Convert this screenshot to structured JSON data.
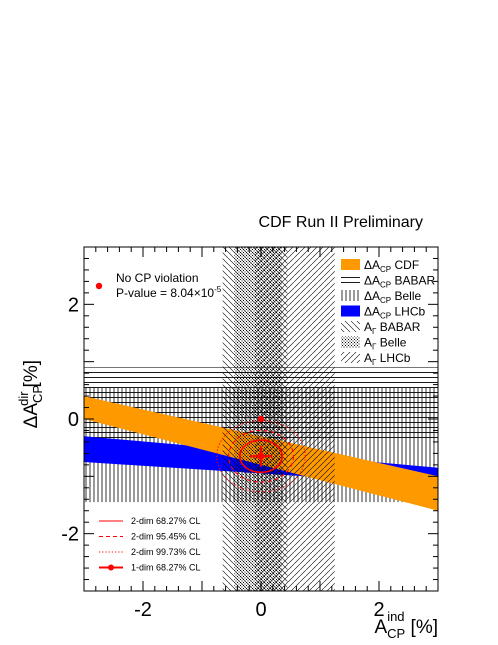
{
  "chart_data": {
    "type": "scatter",
    "title": "CDF Run II Preliminary",
    "xlabel": {
      "base": "A",
      "sub": "CP",
      "sup": "ind",
      "unit": "[%]"
    },
    "ylabel": {
      "prefix": "ΔA",
      "sub": "CP",
      "sup": "dir",
      "unit": "[%]"
    },
    "xlim": [
      -3,
      3
    ],
    "ylim": [
      -3,
      3
    ],
    "x_ticks": [
      -2,
      0,
      2
    ],
    "y_ticks": [
      -2,
      0,
      2
    ],
    "grid": false,
    "legend_position": "top-right",
    "colors": {
      "cdf": "#ff9900",
      "lhcb": "#0000ff",
      "fit": "#ff0000"
    },
    "bands": [
      {
        "id": "dacp_cdf",
        "kind": "slanted",
        "x_range": [
          -3,
          3
        ],
        "lower": [
          0.0,
          -1.6
        ],
        "upper": [
          0.4,
          -1.0
        ],
        "style": "solid-orange",
        "legend": {
          "prefix": "ΔA",
          "sub": "CP",
          "rest": " CDF"
        }
      },
      {
        "id": "dacp_babar",
        "kind": "horizontal",
        "y_range": [
          -0.4,
          0.9
        ],
        "style": "horizontal-lines",
        "legend": {
          "prefix": "ΔA",
          "sub": "CP",
          "rest": " BABAR"
        }
      },
      {
        "id": "dacp_belle",
        "kind": "horizontal",
        "y_range": [
          -1.45,
          0.55
        ],
        "style": "vertical-lines",
        "legend": {
          "prefix": "ΔA",
          "sub": "CP",
          "rest": " Belle"
        }
      },
      {
        "id": "dacp_lhcb",
        "kind": "slanted",
        "x_range": [
          -3,
          3
        ],
        "lower": [
          -0.75,
          -1.15
        ],
        "upper": [
          -0.3,
          -0.85
        ],
        "style": "solid-blue",
        "legend": {
          "prefix": "ΔA",
          "sub": "CP",
          "rest": " LHCb"
        }
      },
      {
        "id": "agamma_babar",
        "kind": "vertical",
        "x_range": [
          -0.65,
          0.45
        ],
        "style": "diagonal-backslash",
        "legend": {
          "prefix": "A",
          "sub": "Γ",
          "rest": " BABAR"
        }
      },
      {
        "id": "agamma_belle",
        "kind": "vertical",
        "x_range": [
          -0.45,
          0.35
        ],
        "style": "fine-crosshatch",
        "legend": {
          "prefix": "A",
          "sub": "Γ",
          "rest": " Belle"
        }
      },
      {
        "id": "agamma_lhcb",
        "kind": "vertical",
        "x_range": [
          -0.1,
          1.25
        ],
        "style": "diagonal-slash",
        "legend": {
          "prefix": "A",
          "sub": "Γ",
          "rest": " LHCb"
        }
      }
    ],
    "no_cp_violation": {
      "x": 0,
      "y": 0,
      "label": "No CP violation",
      "pvalue_label": "P-value = 8.04×10",
      "pvalue_exp": "-5"
    },
    "best_fit": {
      "x": 0,
      "y": -0.65,
      "x_err": 0.19,
      "y_err": 0.18
    },
    "contours": [
      {
        "label": "2-dim 68.27% CL",
        "style": "solid",
        "rx": 0.36,
        "ry": 0.28
      },
      {
        "label": "2-dim 95.45% CL",
        "style": "dashed",
        "rx": 0.55,
        "ry": 0.45
      },
      {
        "label": "2-dim 99.73% CL",
        "style": "dotted",
        "rx": 0.75,
        "ry": 0.62
      }
    ],
    "marker_legend_label": "1-dim 68.27% CL"
  }
}
